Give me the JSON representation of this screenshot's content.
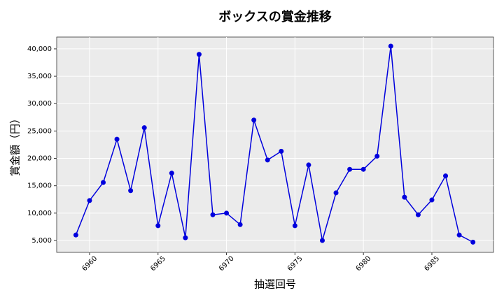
{
  "chart_data": {
    "type": "line",
    "title": "ボックスの賞金推移",
    "xlabel": "抽選回号",
    "ylabel": "賞金額（円）",
    "x": [
      6959,
      6960,
      6961,
      6962,
      6963,
      6964,
      6965,
      6966,
      6967,
      6968,
      6969,
      6970,
      6971,
      6972,
      6973,
      6974,
      6975,
      6976,
      6977,
      6978,
      6979,
      6980,
      6981,
      6982,
      6983,
      6984,
      6985,
      6986,
      6987,
      6988
    ],
    "series": [
      {
        "color": "#0000dd",
        "values": [
          6000,
          12300,
          15600,
          23500,
          14100,
          25600,
          7700,
          17300,
          5500,
          39000,
          9700,
          10000,
          7900,
          27000,
          19700,
          21300,
          7700,
          18800,
          5000,
          13700,
          18000,
          18000,
          20400,
          40500,
          12900,
          9700,
          12400,
          16800,
          6000,
          4700
        ]
      }
    ],
    "xlim": [
      6957.6,
      6989.5
    ],
    "ylim": [
      2830,
      42160
    ],
    "xticks": [
      6960,
      6965,
      6970,
      6975,
      6980,
      6985
    ],
    "yticks": [
      {
        "value": 5000,
        "label": "5,000"
      },
      {
        "value": 10000,
        "label": "10,000"
      },
      {
        "value": 15000,
        "label": "15,000"
      },
      {
        "value": 20000,
        "label": "20,000"
      },
      {
        "value": 25000,
        "label": "25,000"
      },
      {
        "value": 30000,
        "label": "30,000"
      },
      {
        "value": 35000,
        "label": "35,000"
      },
      {
        "value": 40000,
        "label": "40,000"
      }
    ],
    "grid": true
  }
}
